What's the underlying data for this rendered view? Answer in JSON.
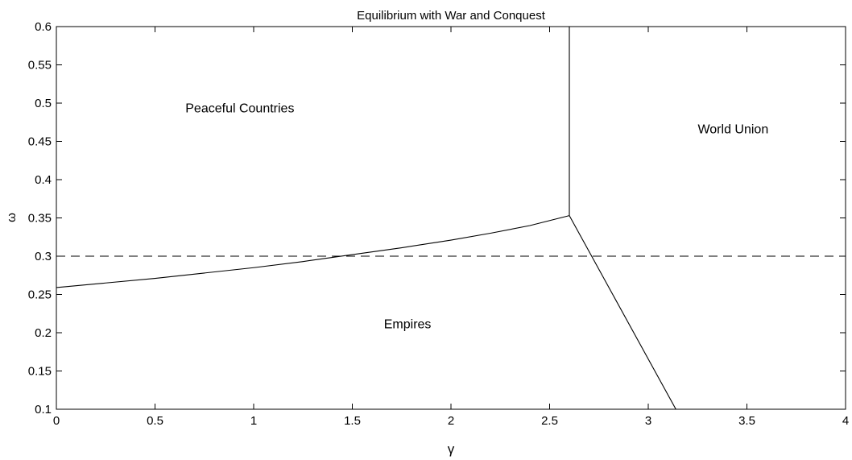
{
  "chart_data": {
    "type": "line",
    "title": "Equilibrium with War and Conquest",
    "xlabel": "γ",
    "ylabel": "ω",
    "xlim": [
      0,
      4
    ],
    "ylim": [
      0.1,
      0.6
    ],
    "x_ticks": [
      0,
      0.5,
      1,
      1.5,
      2,
      2.5,
      3,
      3.5,
      4
    ],
    "x_tick_labels": [
      "0",
      "0.5",
      "1",
      "1.5",
      "2",
      "2.5",
      "3",
      "3.5",
      "4"
    ],
    "y_ticks": [
      0.1,
      0.15,
      0.2,
      0.25,
      0.3,
      0.35,
      0.4,
      0.45,
      0.5,
      0.55,
      0.6
    ],
    "y_tick_labels": [
      "0.1",
      "0.15",
      "0.2",
      "0.25",
      "0.3",
      "0.35",
      "0.4",
      "0.45",
      "0.5",
      "0.55",
      "0.6"
    ],
    "grid": false,
    "series": [
      {
        "style": "solid",
        "x": [
          0,
          0.25,
          0.5,
          0.75,
          1.0,
          1.25,
          1.5,
          1.75,
          2.0,
          2.2,
          2.4,
          2.6
        ],
        "y": [
          0.259,
          0.265,
          0.271,
          0.278,
          0.285,
          0.293,
          0.302,
          0.311,
          0.321,
          0.33,
          0.34,
          0.353
        ]
      },
      {
        "style": "solid",
        "x": [
          2.6,
          2.6
        ],
        "y": [
          0.353,
          0.6
        ]
      },
      {
        "style": "solid",
        "x": [
          2.6,
          3.14
        ],
        "y": [
          0.353,
          0.1
        ]
      },
      {
        "style": "dashed",
        "x": [
          0,
          4
        ],
        "y": [
          0.3,
          0.3
        ]
      }
    ],
    "annotations": [
      {
        "text": "Peaceful Countries",
        "x": 0.93,
        "y": 0.493
      },
      {
        "text": "World Union",
        "x": 3.43,
        "y": 0.466
      },
      {
        "text": "Empires",
        "x": 1.78,
        "y": 0.211
      }
    ]
  }
}
